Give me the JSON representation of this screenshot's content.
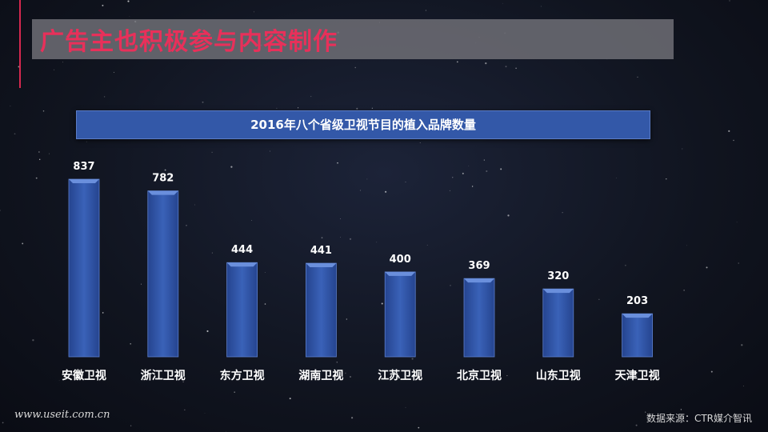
{
  "page": {
    "title": "广告主也积极参与内容制作",
    "website": "www.useit.com.cn",
    "source": "数据来源：CTR媒介智讯"
  },
  "colors": {
    "title": "#e8305a",
    "bar": "#3a62b8",
    "header": "#3358a8"
  },
  "chart_data": {
    "type": "bar",
    "title": "2016年八个省级卫视节目的植入品牌数量",
    "categories": [
      "安徽卫视",
      "浙江卫视",
      "东方卫视",
      "湖南卫视",
      "江苏卫视",
      "北京卫视",
      "山东卫视",
      "天津卫视"
    ],
    "values": [
      837,
      782,
      444,
      441,
      400,
      369,
      320,
      203
    ],
    "ylim": [
      0,
      837
    ],
    "data_labels": true,
    "grid": false,
    "legend": "none"
  }
}
